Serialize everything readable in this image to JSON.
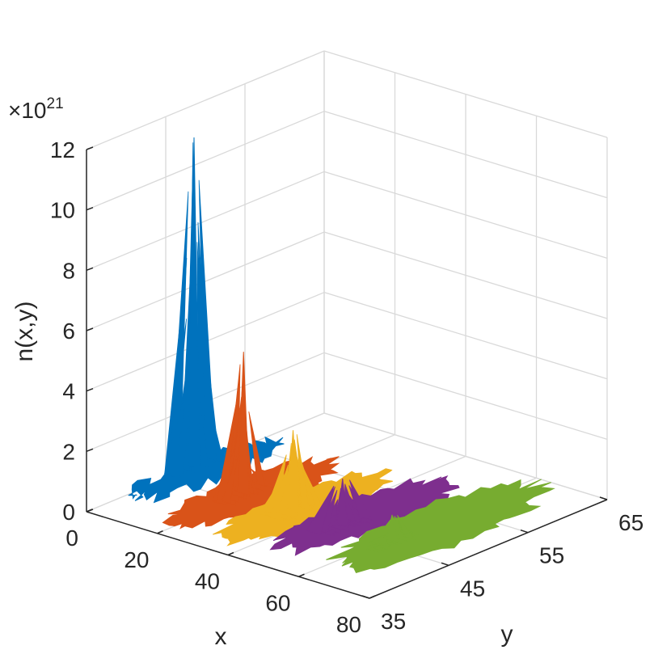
{
  "chart_data": {
    "type": "surface3d",
    "title": "",
    "xlabel": "x",
    "ylabel": "y",
    "zlabel": "n(x,y)",
    "z_exponent": {
      "prefix": "×10",
      "power": "21"
    },
    "x_ticks": [
      "0",
      "20",
      "40",
      "60",
      "80"
    ],
    "y_ticks": [
      "35",
      "45",
      "55",
      "65"
    ],
    "z_ticks": [
      "0",
      "2",
      "4",
      "6",
      "8",
      "10",
      "12"
    ],
    "xlim": [
      0,
      80
    ],
    "ylim": [
      35,
      65
    ],
    "zlim": [
      0,
      12
    ],
    "z_scale": 1e+21,
    "grid": true,
    "series": [
      {
        "color": "#0072BD",
        "peak": {
          "x": 8,
          "y": 45,
          "z": 11.6
        },
        "base_extent": {
          "x": [
            3,
            14
          ],
          "y": [
            37,
            55
          ]
        }
      },
      {
        "color": "#D95319",
        "peak": {
          "x": 22,
          "y": 45,
          "z": 5.0
        },
        "base_extent": {
          "x": [
            14,
            30
          ],
          "y": [
            36,
            56
          ]
        }
      },
      {
        "color": "#EDB120",
        "peak": {
          "x": 36,
          "y": 45,
          "z": 2.9
        },
        "base_extent": {
          "x": [
            28,
            44
          ],
          "y": [
            36,
            57
          ]
        }
      },
      {
        "color": "#7E2F8E",
        "peak": {
          "x": 50,
          "y": 45,
          "z": 1.8
        },
        "base_extent": {
          "x": [
            40,
            57
          ],
          "y": [
            38,
            59
          ]
        }
      },
      {
        "color": "#77AC30",
        "peak": {
          "x": 64,
          "y": 45,
          "z": 1.1
        },
        "base_extent": {
          "x": [
            55,
            75
          ],
          "y": [
            38,
            63
          ]
        }
      }
    ]
  }
}
